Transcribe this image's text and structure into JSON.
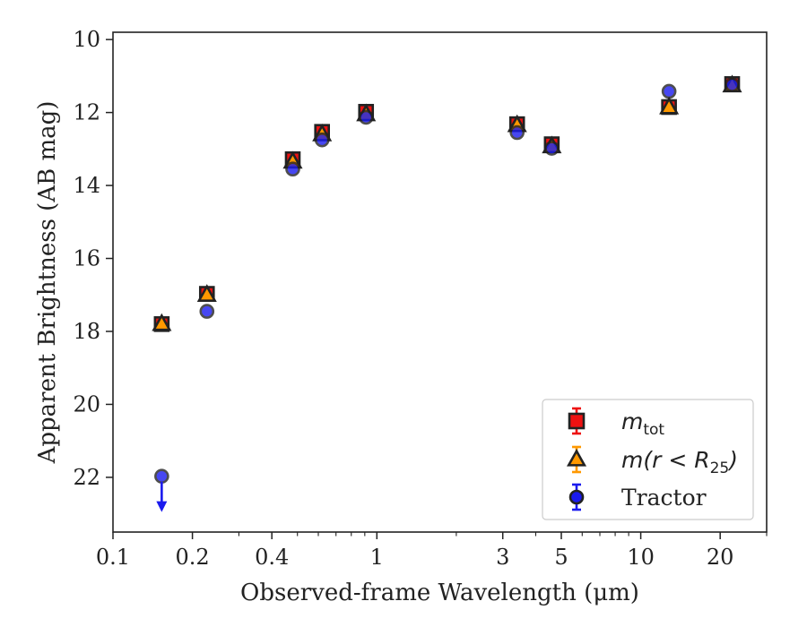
{
  "chart_data": {
    "type": "scatter",
    "xlabel": "Observed-frame Wavelength (μm)",
    "ylabel": "Apparent Brightness (AB mag)",
    "x_scale": "log",
    "xlim": [
      0.1,
      30
    ],
    "ylim": [
      23.5,
      9.8
    ],
    "y_inverted": true,
    "grid": false,
    "legend_position": "lower-right",
    "x_ticks": [
      {
        "value": 0.1,
        "label": "0.1"
      },
      {
        "value": 0.2,
        "label": "0.2"
      },
      {
        "value": 0.4,
        "label": "0.4"
      },
      {
        "value": 1,
        "label": "1"
      },
      {
        "value": 3,
        "label": "3"
      },
      {
        "value": 5,
        "label": "5"
      },
      {
        "value": 10,
        "label": "10"
      },
      {
        "value": 20,
        "label": "20"
      }
    ],
    "y_ticks": [
      {
        "value": 10,
        "label": "10"
      },
      {
        "value": 12,
        "label": "12"
      },
      {
        "value": 14,
        "label": "14"
      },
      {
        "value": 16,
        "label": "16"
      },
      {
        "value": 18,
        "label": "18"
      },
      {
        "value": 20,
        "label": "20"
      },
      {
        "value": 22,
        "label": "22"
      }
    ],
    "series": [
      {
        "name": "m_tot",
        "legend_main": "m",
        "legend_sub": "tot",
        "marker": "square",
        "color": "#ee1111",
        "x": [
          0.153,
          0.227,
          0.48,
          0.62,
          0.91,
          3.4,
          4.6,
          12.8,
          22.2
        ],
        "y": [
          17.8,
          16.97,
          13.28,
          12.53,
          11.98,
          12.32,
          12.87,
          11.85,
          11.22
        ]
      },
      {
        "name": "m(r < R_25)",
        "legend_main": "m(r < R",
        "legend_sub": "25",
        "legend_end": ")",
        "marker": "triangle",
        "color": "#ff9900",
        "x": [
          0.153,
          0.227,
          0.48,
          0.62,
          0.91,
          3.4,
          4.6,
          12.8,
          22.2
        ],
        "y": [
          17.8,
          17.0,
          13.35,
          12.6,
          12.05,
          12.35,
          12.93,
          11.86,
          11.26
        ]
      },
      {
        "name": "Tractor",
        "legend_main": "Tractor",
        "marker": "circle",
        "color": "#1a1aee",
        "x": [
          0.153,
          0.227,
          0.48,
          0.62,
          0.91,
          3.4,
          4.6,
          12.8,
          22.2
        ],
        "y": [
          21.97,
          17.45,
          13.55,
          12.75,
          12.13,
          12.55,
          12.98,
          11.42,
          11.24
        ],
        "upper_limit": [
          true,
          false,
          false,
          false,
          false,
          false,
          false,
          false,
          false
        ]
      }
    ]
  }
}
